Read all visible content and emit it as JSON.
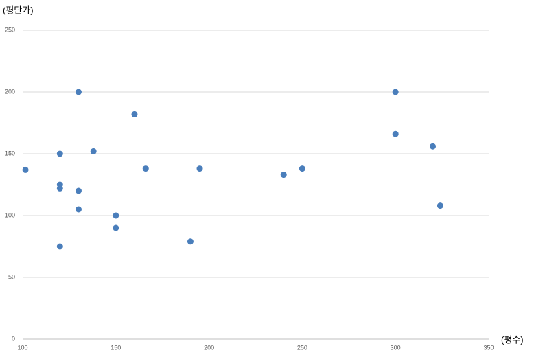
{
  "chart_data": {
    "type": "scatter",
    "y_label": "(평단가)",
    "x_label": "(평수)",
    "color": "#4a7ebb",
    "xlim": [
      100,
      350
    ],
    "xticks": [
      100,
      150,
      200,
      250,
      300,
      350
    ],
    "ylim": [
      0,
      250
    ],
    "yticks": [
      0,
      50,
      100,
      150,
      200,
      250
    ],
    "grid": true,
    "x": [
      101.5,
      120,
      120,
      120,
      120,
      130,
      130,
      130,
      138,
      150,
      150,
      160,
      166,
      190,
      195,
      240,
      250,
      300,
      300,
      320,
      324
    ],
    "values": [
      137,
      150,
      125,
      122,
      75,
      200,
      120,
      105,
      152,
      100,
      90,
      182,
      138,
      79,
      138,
      133,
      138,
      200,
      166,
      156,
      108
    ]
  }
}
